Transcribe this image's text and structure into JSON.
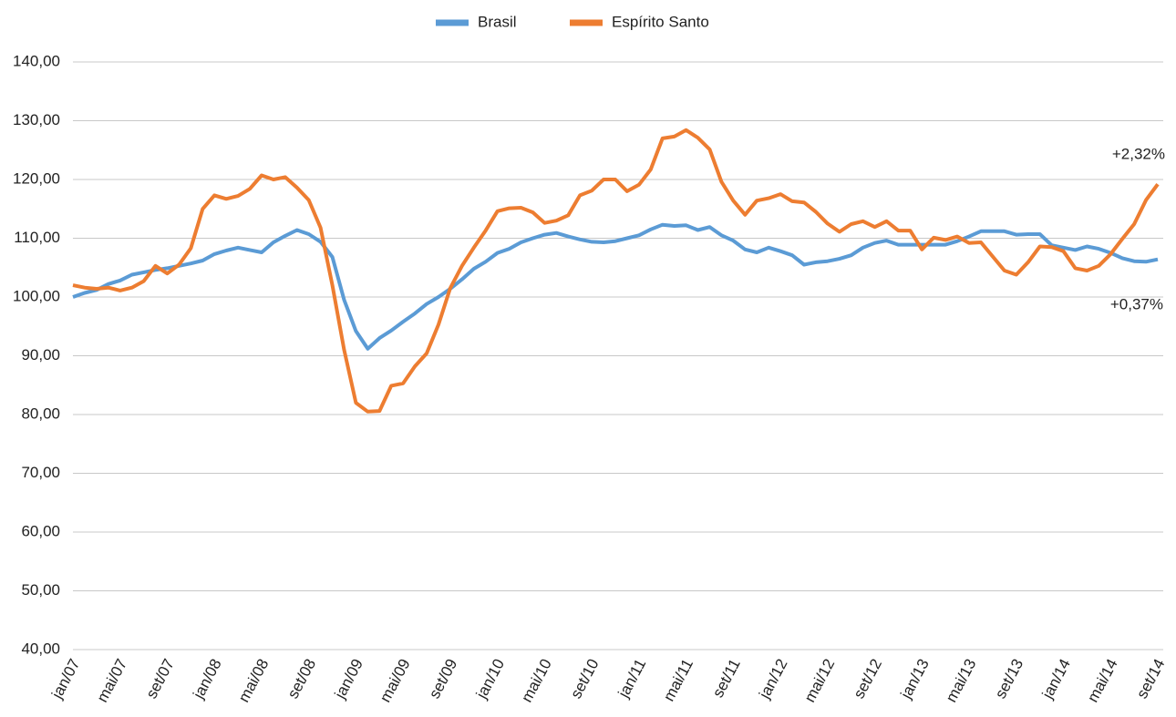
{
  "chart_data": {
    "type": "line",
    "categories": [
      "jan/07",
      null,
      null,
      null,
      "mai/07",
      null,
      null,
      null,
      "set/07",
      null,
      null,
      null,
      "jan/08",
      null,
      null,
      null,
      "mai/08",
      null,
      null,
      null,
      "set/08",
      null,
      null,
      null,
      "jan/09",
      null,
      null,
      null,
      "mai/09",
      null,
      null,
      null,
      "set/09",
      null,
      null,
      null,
      "jan/10",
      null,
      null,
      null,
      "mai/10",
      null,
      null,
      null,
      "set/10",
      null,
      null,
      null,
      "jan/11",
      null,
      null,
      null,
      "mai/11",
      null,
      null,
      null,
      "set/11",
      null,
      null,
      null,
      "jan/12",
      null,
      null,
      null,
      "mai/12",
      null,
      null,
      null,
      "set/12",
      null,
      null,
      null,
      "jan/13",
      null,
      null,
      null,
      "mai/13",
      null,
      null,
      null,
      "set/13",
      null,
      null,
      null,
      "jan/14",
      null,
      null,
      null,
      "mai/14",
      null,
      null,
      null,
      "set/14"
    ],
    "series": [
      {
        "name": "Brasil",
        "color": "#5b9bd5",
        "values": [
          100,
          100.7,
          101.2,
          102.2,
          102.8,
          103.8,
          104.2,
          104.6,
          104.9,
          105.3,
          105.7,
          106.2,
          107.3,
          107.9,
          108.4,
          108.0,
          107.6,
          109.3,
          110.4,
          111.4,
          110.7,
          109.4,
          106.8,
          99.5,
          94.2,
          91.2,
          93.0,
          94.3,
          95.8,
          97.2,
          98.8,
          100.0,
          101.4,
          103.0,
          104.8,
          106.0,
          107.5,
          108.2,
          109.3,
          110.0,
          110.6,
          110.9,
          110.3,
          109.8,
          109.4,
          109.3,
          109.5,
          110.0,
          110.5,
          111.5,
          112.3,
          112.1,
          112.2,
          111.4,
          111.9,
          110.5,
          109.6,
          108.1,
          107.6,
          108.4,
          107.8,
          107.1,
          105.5,
          105.9,
          106.1,
          106.5,
          107.1,
          108.4,
          109.2,
          109.6,
          108.9,
          108.9,
          108.9,
          108.9,
          108.9,
          109.5,
          110.3,
          111.2,
          111.2,
          111.2,
          110.6,
          110.7,
          110.7,
          108.8,
          108.4,
          108.0,
          108.6,
          108.2,
          107.5,
          106.6,
          106.1,
          106.0,
          106.4
        ]
      },
      {
        "name": "Espírito Santo",
        "color": "#ed7d31",
        "values": [
          102.0,
          101.6,
          101.4,
          101.6,
          101.1,
          101.6,
          102.7,
          105.3,
          104.0,
          105.5,
          108.3,
          115.0,
          117.3,
          116.7,
          117.2,
          118.4,
          120.7,
          120.0,
          120.4,
          118.6,
          116.5,
          111.8,
          102.0,
          91.0,
          82.0,
          80.5,
          80.6,
          84.9,
          85.3,
          88.2,
          90.4,
          95.3,
          101.5,
          105.3,
          108.4,
          111.3,
          114.6,
          115.1,
          115.2,
          114.4,
          112.6,
          113.0,
          113.9,
          117.3,
          118.1,
          120.0,
          120.0,
          118.0,
          119.1,
          121.7,
          127.0,
          127.3,
          128.4,
          127.1,
          125.1,
          119.6,
          116.4,
          114.0,
          116.4,
          116.8,
          117.5,
          116.3,
          116.1,
          114.5,
          112.5,
          111.1,
          112.4,
          112.9,
          111.9,
          112.9,
          111.3,
          111.3,
          108.1,
          110.1,
          109.7,
          110.3,
          109.2,
          109.3,
          106.9,
          104.5,
          103.8,
          105.9,
          108.6,
          108.5,
          107.8,
          104.9,
          104.5,
          105.3,
          107.3,
          109.9,
          112.4,
          116.5,
          119.2
        ]
      }
    ],
    "ylim": [
      40,
      140
    ],
    "yticks": [
      {
        "value": 40,
        "label": "40,00"
      },
      {
        "value": 50,
        "label": "50,00"
      },
      {
        "value": 60,
        "label": "60,00"
      },
      {
        "value": 70,
        "label": "70,00"
      },
      {
        "value": 80,
        "label": "80,00"
      },
      {
        "value": 90,
        "label": "90,00"
      },
      {
        "value": 100,
        "label": "100,00"
      },
      {
        "value": 110,
        "label": "110,00"
      },
      {
        "value": 120,
        "label": "120,00"
      },
      {
        "value": 130,
        "label": "130,00"
      },
      {
        "value": 140,
        "label": "140,00"
      }
    ],
    "grid": true,
    "legend": "top",
    "annotations": [
      "+2,32%",
      "+0,37%"
    ]
  }
}
